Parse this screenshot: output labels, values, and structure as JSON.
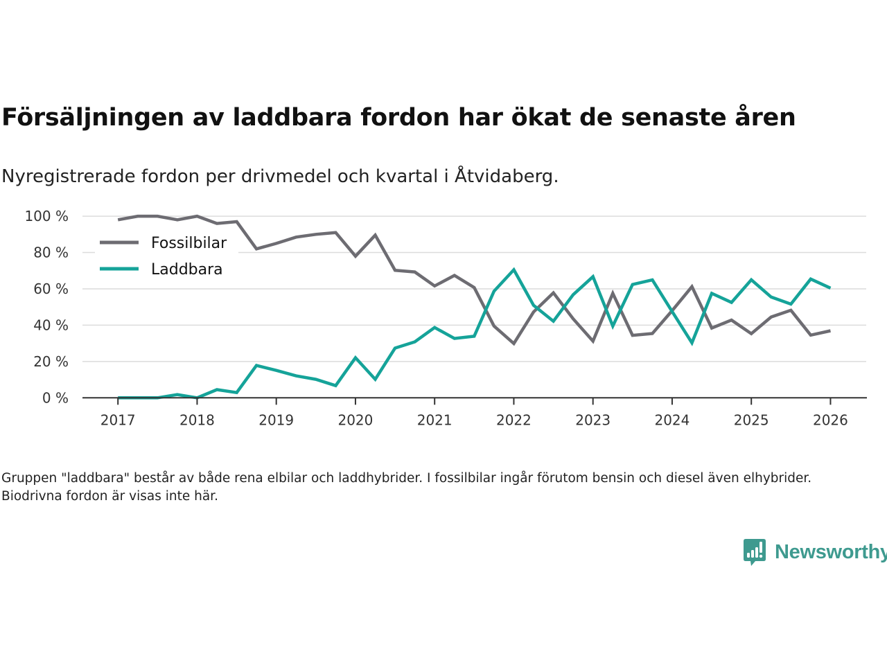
{
  "header": {
    "title": "Försäljningen av laddbara fordon har ökat de senaste åren",
    "subtitle": "Nyregistrerade fordon per drivmedel och kvartal i Åtvidaberg."
  },
  "footnote": "Gruppen \"laddbara\" består av både rena elbilar och laddhybrider. I fossilbilar ingår förutom bensin och diesel även elhybrider. Biodrivna fordon är visas inte här.",
  "brand": {
    "name": "Newsworthy",
    "color": "#3e9a8f",
    "icon": "newsworthy-logo-icon"
  },
  "chart_data": {
    "type": "line",
    "title": "Försäljningen av laddbara fordon har ökat de senaste åren",
    "subtitle": "Nyregistrerade fordon per drivmedel och kvartal i Åtvidaberg.",
    "xlabel": "",
    "ylabel": "",
    "x_unit": "year (quarterly steps)",
    "x": [
      2017,
      2017.25,
      2017.5,
      2017.75,
      2018,
      2018.25,
      2018.5,
      2018.75,
      2019,
      2019.25,
      2019.5,
      2019.75,
      2020,
      2020.25,
      2020.5,
      2020.75,
      2021,
      2021.25,
      2021.5,
      2021.75,
      2022,
      2022.25,
      2022.5,
      2022.75,
      2023,
      2023.25,
      2023.5,
      2023.75,
      2024,
      2024.25,
      2024.5,
      2024.75,
      2025,
      2025.25,
      2025.5,
      2025.75,
      2026
    ],
    "xlim": [
      2016.57,
      2026.45
    ],
    "x_ticks": [
      2017,
      2018,
      2019,
      2020,
      2021,
      2022,
      2023,
      2024,
      2025,
      2026
    ],
    "x_tick_labels": [
      "2017",
      "2018",
      "2019",
      "2020",
      "2021",
      "2022",
      "2023",
      "2024",
      "2025",
      "2026"
    ],
    "ylim": [
      0,
      100
    ],
    "y_ticks": [
      0,
      20,
      40,
      60,
      80,
      100
    ],
    "y_tick_labels": [
      "0 %",
      "20 %",
      "40 %",
      "60 %",
      "80 %",
      "100 %"
    ],
    "grid": true,
    "legend_position": "top-left",
    "series": [
      {
        "name": "Fossilbilar",
        "color": "#6d6c72",
        "values": [
          98,
          100,
          100,
          98,
          100,
          96,
          97,
          82,
          85,
          88.5,
          90,
          91,
          78,
          89.6,
          70.2,
          69.3,
          61.6,
          67.4,
          60.7,
          39.5,
          29.9,
          47.3,
          57.8,
          43.5,
          31.2,
          57.5,
          34.4,
          35.4,
          48,
          61.2,
          38.4,
          42.8,
          35.3,
          44.5,
          48.2,
          34.5,
          36.9
        ]
      },
      {
        "name": "Laddbara",
        "color": "#15a399",
        "values": [
          0,
          0,
          0,
          1.8,
          0,
          4.5,
          2.9,
          17.8,
          15.1,
          12.1,
          10.2,
          6.7,
          22.1,
          10.2,
          27.4,
          30.8,
          38.7,
          32.7,
          33.9,
          58.7,
          70.5,
          50.9,
          42.2,
          56.8,
          66.7,
          39.5,
          62.4,
          64.9,
          47.5,
          30.3,
          57.5,
          52.5,
          65,
          55.5,
          51.6,
          65.4,
          60.4
        ]
      }
    ]
  }
}
